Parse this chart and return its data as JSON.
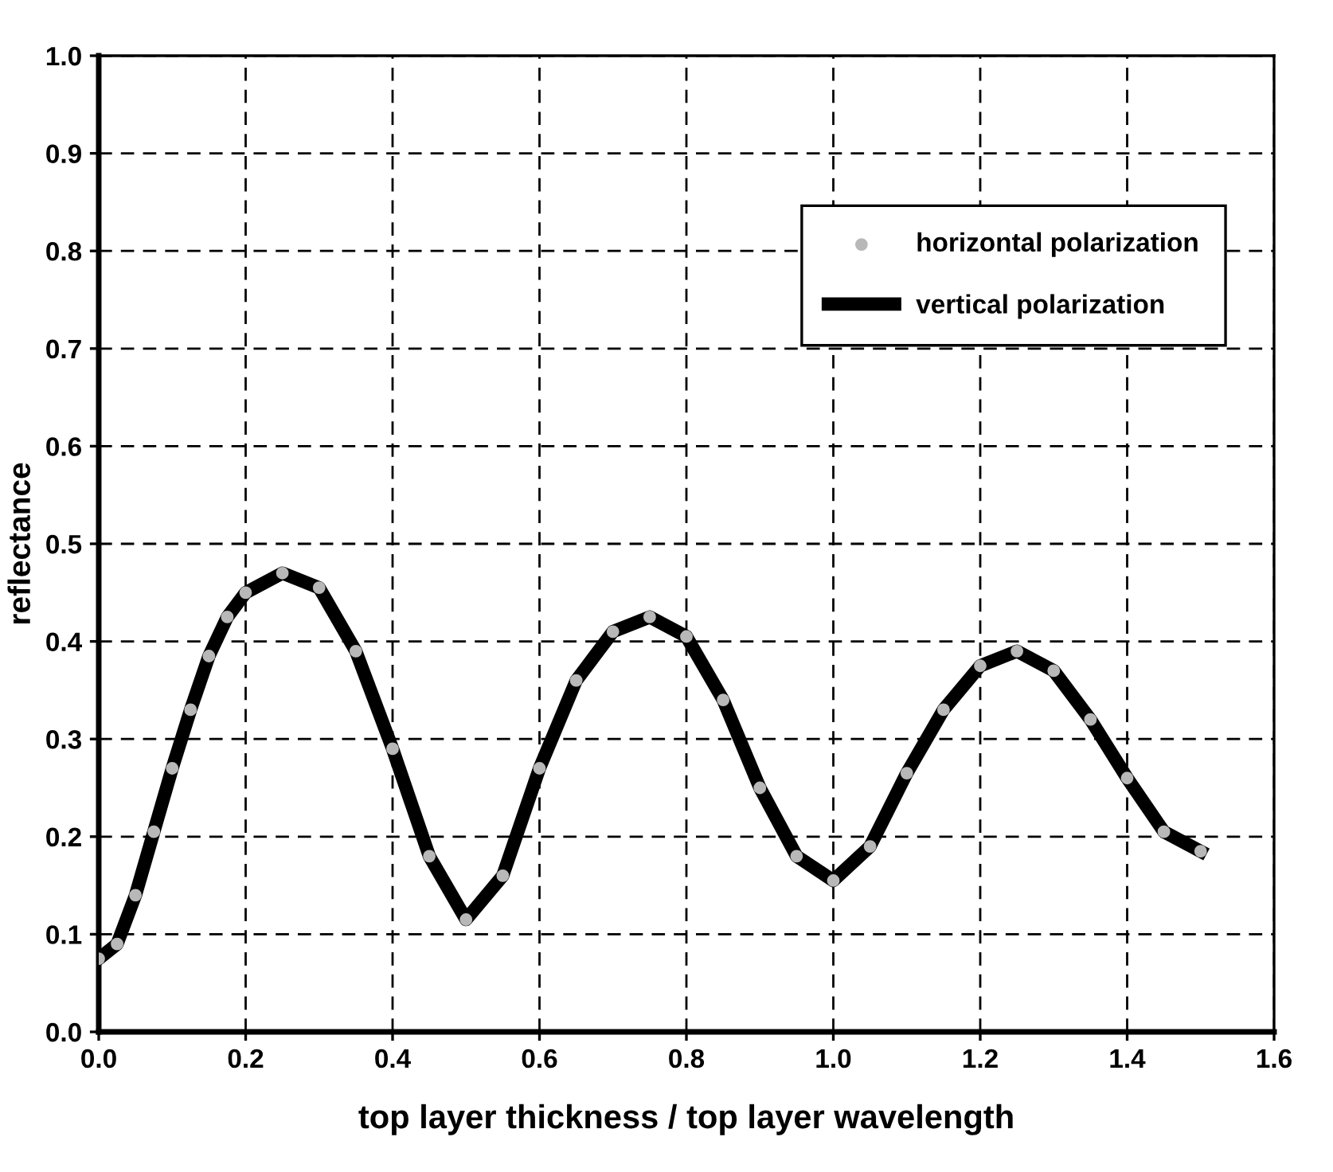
{
  "chart_data": {
    "type": "line",
    "xlabel": "top layer thickness / top layer wavelength",
    "ylabel": "reflectance",
    "x": [
      0,
      0.025,
      0.05,
      0.075,
      0.1,
      0.125,
      0.15,
      0.175,
      0.2,
      0.25,
      0.3,
      0.35,
      0.4,
      0.45,
      0.5,
      0.55,
      0.6,
      0.65,
      0.7,
      0.75,
      0.8,
      0.85,
      0.9,
      0.95,
      1.0,
      1.05,
      1.1,
      1.15,
      1.2,
      1.25,
      1.3,
      1.35,
      1.4,
      1.45,
      1.5
    ],
    "series": [
      {
        "name": "horizontal polarization",
        "type": "scatter",
        "marker": "circle",
        "color": "#b8b8b8",
        "values": [
          0.075,
          0.09,
          0.14,
          0.205,
          0.27,
          0.33,
          0.385,
          0.425,
          0.45,
          0.47,
          0.455,
          0.39,
          0.29,
          0.18,
          0.115,
          0.16,
          0.27,
          0.36,
          0.41,
          0.425,
          0.405,
          0.34,
          0.25,
          0.18,
          0.155,
          0.19,
          0.265,
          0.33,
          0.375,
          0.39,
          0.37,
          0.32,
          0.26,
          0.205,
          0.185
        ]
      },
      {
        "name": "vertical polarization",
        "line_style": "solid",
        "color": "#000000",
        "values": [
          0.075,
          0.09,
          0.14,
          0.205,
          0.27,
          0.33,
          0.385,
          0.425,
          0.45,
          0.47,
          0.455,
          0.39,
          0.29,
          0.18,
          0.115,
          0.16,
          0.27,
          0.36,
          0.41,
          0.425,
          0.405,
          0.34,
          0.25,
          0.18,
          0.155,
          0.19,
          0.265,
          0.33,
          0.375,
          0.39,
          0.37,
          0.32,
          0.26,
          0.205,
          0.185
        ]
      }
    ],
    "xlim": [
      0,
      1.6
    ],
    "xticks": [
      {
        "value": 0,
        "label": "0.0"
      },
      {
        "value": 0.2,
        "label": "0.2"
      },
      {
        "value": 0.4,
        "label": "0.4"
      },
      {
        "value": 0.6,
        "label": "0.6"
      },
      {
        "value": 0.8,
        "label": "0.8"
      },
      {
        "value": 1.0,
        "label": "1.0"
      },
      {
        "value": 1.2,
        "label": "1.2"
      },
      {
        "value": 1.4,
        "label": "1.4"
      },
      {
        "value": 1.6,
        "label": "1.6"
      }
    ],
    "ylim": [
      0,
      1
    ],
    "yticks": [
      {
        "value": 0,
        "label": "0.0"
      },
      {
        "value": 0.1,
        "label": "0.1"
      },
      {
        "value": 0.2,
        "label": "0.2"
      },
      {
        "value": 0.3,
        "label": "0.3"
      },
      {
        "value": 0.4,
        "label": "0.4"
      },
      {
        "value": 0.5,
        "label": "0.5"
      },
      {
        "value": 0.6,
        "label": "0.6"
      },
      {
        "value": 0.7,
        "label": "0.7"
      },
      {
        "value": 0.8,
        "label": "0.8"
      },
      {
        "value": 0.9,
        "label": "0.9"
      },
      {
        "value": 1.0,
        "label": "1.0"
      }
    ],
    "grid": true,
    "legend": "top right"
  }
}
